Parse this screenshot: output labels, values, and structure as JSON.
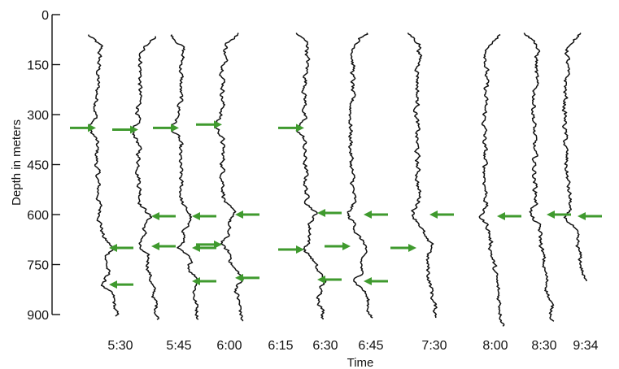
{
  "chart_data": {
    "type": "line",
    "xlabel": "Time",
    "ylabel": "Depth in meters",
    "ylim": [
      0,
      900
    ],
    "y_inverted": true,
    "yticks": [
      "0",
      "150",
      "300",
      "450",
      "600",
      "750",
      "900"
    ],
    "ytick_values": [
      0,
      150,
      300,
      450,
      600,
      750,
      900
    ],
    "grid": false,
    "legend": "none",
    "colors": {
      "trace": "#111111",
      "arrow": "#3f9a2e",
      "axis": "#111111"
    },
    "profiles": [
      {
        "time": "5:30",
        "top_depth": 60,
        "bottom_depth": 905,
        "markers_depth": [
          340,
          700,
          810
        ]
      },
      {
        "time": "5:45",
        "top_depth": 65,
        "bottom_depth": 915,
        "markers_depth": [
          345,
          605,
          695
        ]
      },
      {
        "time": "6:00",
        "top_depth": 60,
        "bottom_depth": 915,
        "markers_depth": [
          340,
          605,
          700,
          800
        ]
      },
      {
        "time": "6:15",
        "top_depth": 55,
        "bottom_depth": 920,
        "markers_depth": [
          330,
          600,
          690,
          790
        ]
      },
      {
        "time": "6:30",
        "top_depth": 55,
        "bottom_depth": 915,
        "markers_depth": [
          340,
          595,
          705,
          795
        ]
      },
      {
        "time": "6:45",
        "top_depth": 55,
        "bottom_depth": 910,
        "markers_depth": [
          600,
          695,
          800
        ]
      },
      {
        "time": "7:30",
        "top_depth": 55,
        "bottom_depth": 910,
        "markers_depth": [
          600,
          700
        ]
      },
      {
        "time": "8:00",
        "top_depth": 60,
        "bottom_depth": 935,
        "markers_depth": [
          605
        ]
      },
      {
        "time": "8:30",
        "top_depth": 55,
        "bottom_depth": 920,
        "markers_depth": [
          600
        ]
      },
      {
        "time": "9:34",
        "top_depth": 55,
        "bottom_depth": 800,
        "markers_depth": [
          605
        ]
      }
    ]
  }
}
